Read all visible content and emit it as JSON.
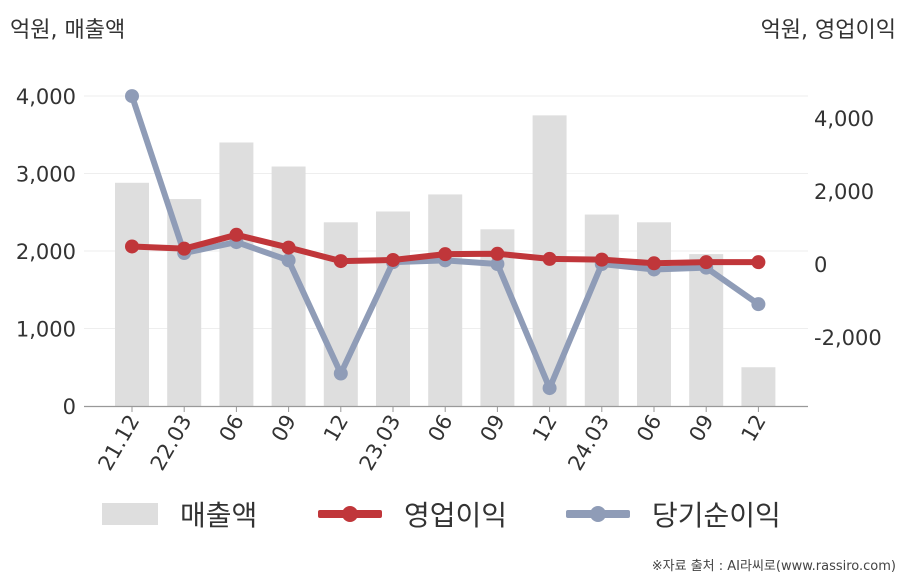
{
  "units": {
    "left": "억원, 매출액",
    "right": "억원, 영업이익"
  },
  "source": "※자료 출처 : AI라씨로(www.rassiro.com)",
  "legend": {
    "sales": "매출액",
    "operating": "영업이익",
    "net": "당기순이익"
  },
  "colors": {
    "sales": "#dedede",
    "operating": "#c0363a",
    "net": "#8f9cb7",
    "grid": "#eeeeee",
    "axis": "#999999",
    "text": "#333333"
  },
  "chart_data": {
    "type": "bar",
    "categories": [
      "21.12",
      "22.03",
      "06",
      "09",
      "12",
      "23.03",
      "06",
      "09",
      "12",
      "24.03",
      "06",
      "09",
      "12"
    ],
    "series": [
      {
        "name": "매출액",
        "type": "bar",
        "axis": "left",
        "values": [
          2880,
          2670,
          3400,
          3090,
          2370,
          2510,
          2730,
          2280,
          3750,
          2470,
          2370,
          1960,
          500
        ]
      },
      {
        "name": "영업이익",
        "type": "line",
        "axis": "right",
        "values": [
          480,
          420,
          800,
          450,
          80,
          110,
          270,
          280,
          140,
          120,
          20,
          50,
          50
        ]
      },
      {
        "name": "당기순이익",
        "type": "line",
        "axis": "right",
        "values": [
          4600,
          300,
          600,
          100,
          -3000,
          50,
          100,
          0,
          -3400,
          0,
          -150,
          -100,
          -1100
        ]
      }
    ],
    "y_left": {
      "ylim": [
        0,
        4000
      ],
      "ticks": [
        0,
        1000,
        2000,
        3000,
        4000
      ],
      "tick_labels": [
        "0",
        "1,000",
        "2,000",
        "3,000",
        "4,000"
      ]
    },
    "y_right": {
      "ylim": [
        -4000,
        4800
      ],
      "ticks": [
        -2000,
        0,
        2000,
        4000
      ],
      "tick_labels": [
        "-2,000",
        "0",
        "2,000",
        "4,000"
      ]
    },
    "grid": true,
    "legend_position": "bottom"
  }
}
